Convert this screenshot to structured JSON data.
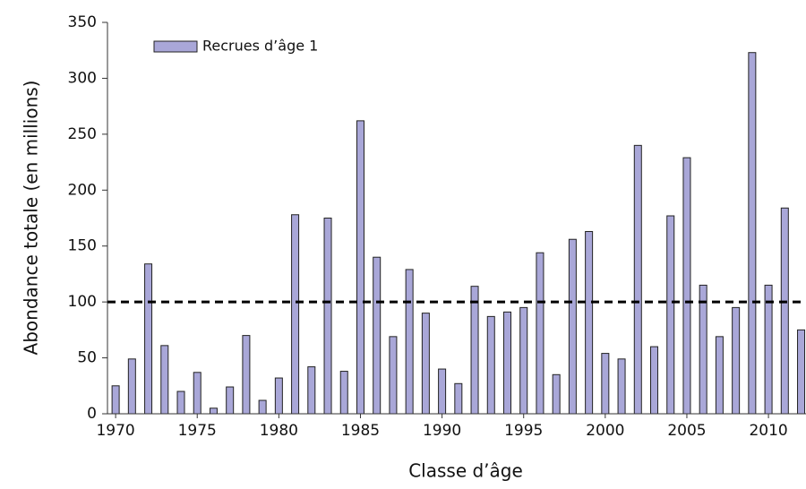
{
  "chart_data": {
    "type": "bar",
    "x_label": "Classe d’âge",
    "y_label": "Abondance totale (en millions)",
    "x": [
      1970,
      1971,
      1972,
      1973,
      1974,
      1975,
      1976,
      1977,
      1978,
      1979,
      1980,
      1981,
      1982,
      1983,
      1984,
      1985,
      1986,
      1987,
      1988,
      1989,
      1990,
      1991,
      1992,
      1993,
      1994,
      1995,
      1996,
      1997,
      1998,
      1999,
      2000,
      2001,
      2002,
      2003,
      2004,
      2005,
      2006,
      2007,
      2008,
      2009,
      2010,
      2011,
      2012
    ],
    "series": [
      {
        "name": "Recrues d’âge 1",
        "color": "#a9a7d8",
        "values": [
          25,
          49,
          134,
          61,
          20,
          37,
          5,
          24,
          70,
          12,
          32,
          178,
          42,
          175,
          38,
          262,
          140,
          69,
          129,
          90,
          40,
          27,
          114,
          87,
          91,
          95,
          144,
          35,
          156,
          163,
          54,
          49,
          240,
          60,
          177,
          229,
          115,
          69,
          95,
          323,
          115,
          184,
          75
        ]
      }
    ],
    "reference_line": 100,
    "xlim": [
      1969.5,
      2012.3
    ],
    "xticks": [
      1970,
      1975,
      1980,
      1985,
      1990,
      1995,
      2000,
      2005,
      2010
    ],
    "ylim": [
      0,
      350
    ],
    "yticks": [
      0,
      50,
      100,
      150,
      200,
      250,
      300,
      350
    ],
    "grid": false,
    "legend": "upper left"
  }
}
